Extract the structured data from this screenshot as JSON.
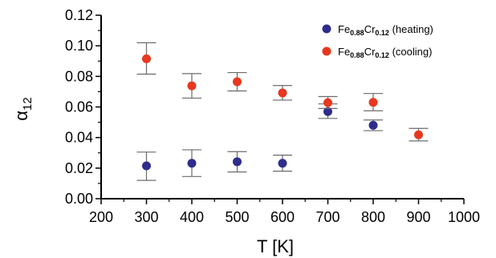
{
  "chart_data": {
    "type": "scatter",
    "xlabel": "T [K]",
    "ylabel_main": "α",
    "ylabel_sub": "12",
    "xlim": [
      200,
      1000
    ],
    "ylim": [
      0.0,
      0.12
    ],
    "xticks": [
      200,
      300,
      400,
      500,
      600,
      700,
      800,
      900,
      1000
    ],
    "xtick_labels": [
      "200",
      "300",
      "400",
      "500",
      "600",
      "700",
      "800",
      "900",
      "1000"
    ],
    "yticks": [
      0.0,
      0.02,
      0.04,
      0.06,
      0.08,
      0.1,
      0.12
    ],
    "ytick_labels": [
      "0.00",
      "0.02",
      "0.04",
      "0.06",
      "0.08",
      "0.10",
      "0.12"
    ],
    "grid": false,
    "legend_position": "top-right",
    "series": [
      {
        "name_parts": [
          "Fe",
          "0.88",
          "Cr",
          "0.12",
          " (heating)"
        ],
        "color": "#2e2d8c",
        "points": [
          {
            "x": 300,
            "y": 0.0215,
            "err_lo": 0.012,
            "err_hi": 0.0305
          },
          {
            "x": 400,
            "y": 0.0232,
            "err_lo": 0.0145,
            "err_hi": 0.032
          },
          {
            "x": 500,
            "y": 0.0242,
            "err_lo": 0.0175,
            "err_hi": 0.0308
          },
          {
            "x": 600,
            "y": 0.0232,
            "err_lo": 0.018,
            "err_hi": 0.0285
          },
          {
            "x": 700,
            "y": 0.057,
            "err_lo": 0.0525,
            "err_hi": 0.062
          },
          {
            "x": 800,
            "y": 0.048,
            "err_lo": 0.0445,
            "err_hi": 0.0515
          }
        ]
      },
      {
        "name_parts": [
          "Fe",
          "0.88",
          "Cr",
          "0.12",
          " (cooling)"
        ],
        "color": "#e8371f",
        "points": [
          {
            "x": 300,
            "y": 0.0915,
            "err_lo": 0.0815,
            "err_hi": 0.102
          },
          {
            "x": 400,
            "y": 0.0738,
            "err_lo": 0.0658,
            "err_hi": 0.0818
          },
          {
            "x": 500,
            "y": 0.0765,
            "err_lo": 0.0705,
            "err_hi": 0.0825
          },
          {
            "x": 600,
            "y": 0.0692,
            "err_lo": 0.0645,
            "err_hi": 0.074
          },
          {
            "x": 700,
            "y": 0.0628,
            "err_lo": 0.059,
            "err_hi": 0.0668
          },
          {
            "x": 800,
            "y": 0.063,
            "err_lo": 0.0575,
            "err_hi": 0.0688
          },
          {
            "x": 900,
            "y": 0.0418,
            "err_lo": 0.0378,
            "err_hi": 0.046
          }
        ]
      }
    ]
  }
}
